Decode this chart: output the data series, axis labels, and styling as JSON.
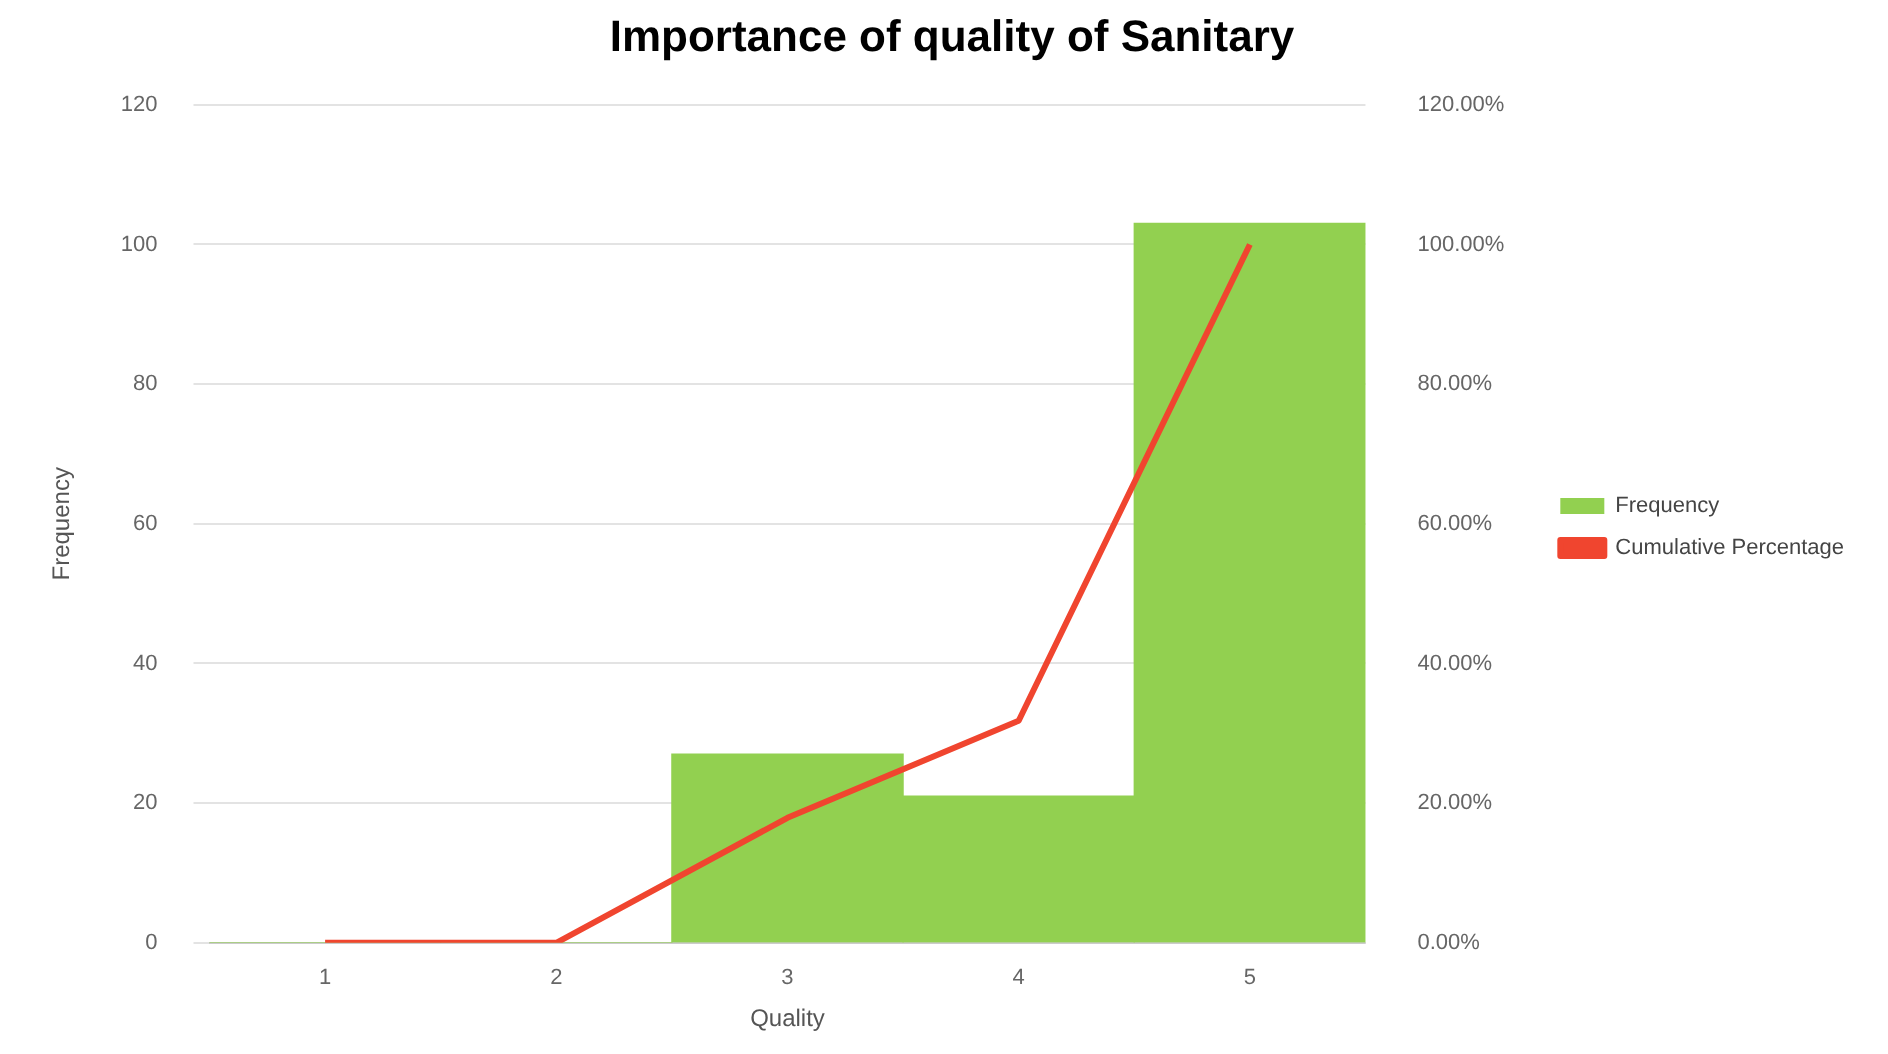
{
  "chart_data": {
    "type": "bar",
    "title": "Importance of quality of Sanitary",
    "xlabel": "Quality",
    "ylabel": "Frequency",
    "categories": [
      "1",
      "2",
      "3",
      "4",
      "5"
    ],
    "series": [
      {
        "name": "Frequency",
        "color": "#92d050",
        "values": [
          0,
          0,
          27,
          21,
          103
        ]
      },
      {
        "name": "Cumulative Percentage",
        "type": "line",
        "axis": "y2",
        "color": "#f0452f",
        "values": [
          0,
          0,
          17.9,
          31.8,
          100
        ]
      }
    ],
    "ylim": [
      0,
      120
    ],
    "yticks": [
      0,
      20,
      40,
      60,
      80,
      100,
      120
    ],
    "y2lim": [
      0,
      120
    ],
    "y2ticks": [
      {
        "value": 0,
        "label": "0.00%"
      },
      {
        "value": 20,
        "label": "20.00%"
      },
      {
        "value": 40,
        "label": "40.00%"
      },
      {
        "value": 60,
        "label": "60.00%"
      },
      {
        "value": 80,
        "label": "80.00%"
      },
      {
        "value": 100,
        "label": "100.00%"
      },
      {
        "value": 120,
        "label": "120.00%"
      }
    ],
    "grid": "y",
    "legend": "right",
    "marker": "none"
  }
}
